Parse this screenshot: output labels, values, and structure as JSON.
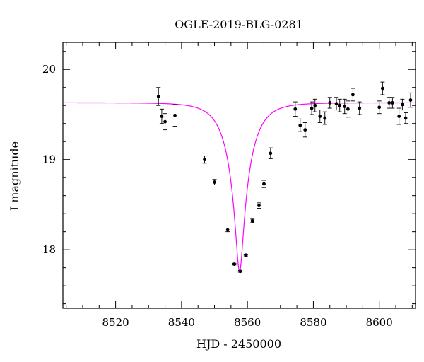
{
  "chart_data": {
    "type": "scatter",
    "title": "OGLE-2019-BLG-0281",
    "xlabel": "HJD - 2450000",
    "ylabel": "I magnitude",
    "xlim": [
      8504,
      8611
    ],
    "ylim": [
      20.3,
      17.35
    ],
    "y_inverted": true,
    "grid": false,
    "x_ticks": [
      8520,
      8540,
      8560,
      8580,
      8600
    ],
    "y_ticks": [
      18,
      19,
      20
    ],
    "series": [
      {
        "kind": "points_with_errorbars",
        "color": "#000000",
        "points": [
          {
            "x": 8533.0,
            "y": 19.7,
            "err": 0.1
          },
          {
            "x": 8534.0,
            "y": 19.48,
            "err": 0.08
          },
          {
            "x": 8535.0,
            "y": 19.42,
            "err": 0.09
          },
          {
            "x": 8538.0,
            "y": 19.49,
            "err": 0.12
          },
          {
            "x": 8547.0,
            "y": 19.0,
            "err": 0.04
          },
          {
            "x": 8550.0,
            "y": 18.75,
            "err": 0.03
          },
          {
            "x": 8554.0,
            "y": 18.22,
            "err": 0.02
          },
          {
            "x": 8556.0,
            "y": 17.84,
            "err": 0.01
          },
          {
            "x": 8557.8,
            "y": 17.76,
            "err": 0.01
          },
          {
            "x": 8559.5,
            "y": 17.94,
            "err": 0.01
          },
          {
            "x": 8561.5,
            "y": 18.32,
            "err": 0.02
          },
          {
            "x": 8563.5,
            "y": 18.49,
            "err": 0.03
          },
          {
            "x": 8565.0,
            "y": 18.73,
            "err": 0.04
          },
          {
            "x": 8567.0,
            "y": 19.07,
            "err": 0.06
          },
          {
            "x": 8574.5,
            "y": 19.56,
            "err": 0.08
          },
          {
            "x": 8576.0,
            "y": 19.38,
            "err": 0.07
          },
          {
            "x": 8577.5,
            "y": 19.33,
            "err": 0.08
          },
          {
            "x": 8579.5,
            "y": 19.57,
            "err": 0.07
          },
          {
            "x": 8580.5,
            "y": 19.6,
            "err": 0.07
          },
          {
            "x": 8582.0,
            "y": 19.48,
            "err": 0.07
          },
          {
            "x": 8583.5,
            "y": 19.46,
            "err": 0.07
          },
          {
            "x": 8585.0,
            "y": 19.63,
            "err": 0.06
          },
          {
            "x": 8587.0,
            "y": 19.62,
            "err": 0.07
          },
          {
            "x": 8588.0,
            "y": 19.6,
            "err": 0.07
          },
          {
            "x": 8589.5,
            "y": 19.59,
            "err": 0.08
          },
          {
            "x": 8590.5,
            "y": 19.56,
            "err": 0.09
          },
          {
            "x": 8592.0,
            "y": 19.72,
            "err": 0.07
          },
          {
            "x": 8594.0,
            "y": 19.57,
            "err": 0.07
          },
          {
            "x": 8600.0,
            "y": 19.58,
            "err": 0.07
          },
          {
            "x": 8601.0,
            "y": 19.79,
            "err": 0.07
          },
          {
            "x": 8603.0,
            "y": 19.63,
            "err": 0.06
          },
          {
            "x": 8604.0,
            "y": 19.63,
            "err": 0.06
          },
          {
            "x": 8606.0,
            "y": 19.48,
            "err": 0.09
          },
          {
            "x": 8607.0,
            "y": 19.61,
            "err": 0.06
          },
          {
            "x": 8608.0,
            "y": 19.46,
            "err": 0.06
          },
          {
            "x": 8609.5,
            "y": 19.66,
            "err": 0.08
          }
        ]
      },
      {
        "kind": "model_curve",
        "color": "#ff00ff",
        "baseline_mag": 19.63,
        "peak_mag": 17.76,
        "t0": 8557.6,
        "tE": 6.6,
        "blend_fraction": 0.82
      }
    ]
  }
}
